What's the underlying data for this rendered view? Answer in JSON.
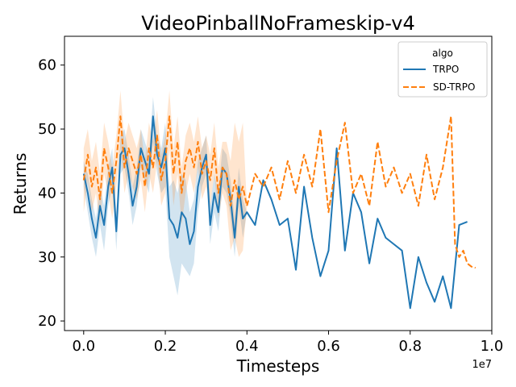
{
  "chart_data": {
    "type": "line",
    "title": "VideoPinballNoFrameskip-v4",
    "xlabel": "Timesteps",
    "ylabel": "Returns",
    "x_offset_label": "1e7",
    "xlim": [
      -0.047,
      1.0
    ],
    "ylim": [
      18.5,
      64.5
    ],
    "xticks": [
      0.0,
      0.2,
      0.4,
      0.6,
      0.8,
      1.0
    ],
    "xtick_labels": [
      "0.0",
      "0.2",
      "0.4",
      "0.6",
      "0.8",
      "1.0"
    ],
    "yticks": [
      20,
      30,
      40,
      50,
      60
    ],
    "ytick_labels": [
      "20",
      "30",
      "40",
      "50",
      "60"
    ],
    "grid": false,
    "legend": {
      "title": "algo",
      "position": "top-right"
    },
    "series": [
      {
        "name": "TRPO",
        "color": "#1f77b4",
        "dash": "solid",
        "x": [
          0.0,
          0.01,
          0.02,
          0.03,
          0.04,
          0.05,
          0.06,
          0.07,
          0.08,
          0.09,
          0.1,
          0.11,
          0.12,
          0.13,
          0.14,
          0.15,
          0.16,
          0.17,
          0.18,
          0.19,
          0.2,
          0.21,
          0.22,
          0.23,
          0.24,
          0.25,
          0.26,
          0.27,
          0.28,
          0.29,
          0.3,
          0.31,
          0.32,
          0.33,
          0.34,
          0.35,
          0.36,
          0.37,
          0.38,
          0.39,
          0.4,
          0.42,
          0.44,
          0.46,
          0.48,
          0.5,
          0.52,
          0.54,
          0.56,
          0.58,
          0.6,
          0.62,
          0.64,
          0.66,
          0.68,
          0.7,
          0.72,
          0.74,
          0.76,
          0.78,
          0.8,
          0.82,
          0.84,
          0.86,
          0.88,
          0.9,
          0.92,
          0.94
        ],
        "y": [
          43,
          40,
          36,
          33,
          38,
          35,
          41,
          44,
          34,
          46,
          47,
          43,
          38,
          41,
          47,
          45,
          43,
          52,
          46,
          44,
          47,
          36,
          35,
          33,
          37,
          36,
          32,
          34,
          41,
          44,
          46,
          35,
          40,
          37,
          44,
          43,
          39,
          33,
          41,
          36,
          37,
          35,
          42,
          39,
          35,
          36,
          28,
          41,
          33,
          27,
          31,
          47,
          31,
          40,
          37,
          29,
          36,
          33,
          32,
          31,
          22,
          30,
          26,
          23,
          27,
          22,
          35,
          35.5
        ],
        "band_lower": [
          41,
          37,
          33,
          30,
          35,
          31,
          38,
          41,
          31,
          43,
          44,
          40,
          35,
          38,
          44,
          42,
          40,
          48,
          43,
          40,
          41,
          30,
          27,
          24,
          29,
          28,
          27,
          29,
          37,
          41,
          43,
          32,
          37,
          34,
          41,
          40,
          36,
          30,
          38,
          33,
          37,
          35,
          42,
          39,
          35,
          36,
          28,
          41,
          33,
          27,
          31,
          47,
          31,
          40,
          37,
          29,
          36,
          33,
          32,
          31,
          22,
          30,
          26,
          23,
          27,
          22,
          35,
          35.5
        ],
        "band_upper": [
          45,
          43,
          39,
          36,
          41,
          38,
          44,
          47,
          37,
          49,
          50,
          46,
          41,
          44,
          50,
          48,
          46,
          55,
          49,
          47,
          51,
          41,
          42,
          40,
          43,
          42,
          37,
          39,
          45,
          47,
          49,
          38,
          43,
          40,
          47,
          46,
          42,
          36,
          44,
          39,
          37,
          35,
          42,
          39,
          35,
          36,
          28,
          41,
          33,
          27,
          31,
          47,
          31,
          40,
          37,
          29,
          36,
          33,
          32,
          31,
          22,
          30,
          26,
          23,
          27,
          22,
          35,
          35.5
        ]
      },
      {
        "name": "SD-TRPO",
        "color": "#ff7f0e",
        "dash": "dashed",
        "x": [
          0.0,
          0.01,
          0.02,
          0.03,
          0.04,
          0.05,
          0.06,
          0.07,
          0.08,
          0.09,
          0.1,
          0.11,
          0.12,
          0.13,
          0.14,
          0.15,
          0.16,
          0.17,
          0.18,
          0.19,
          0.2,
          0.21,
          0.22,
          0.23,
          0.24,
          0.25,
          0.26,
          0.27,
          0.28,
          0.29,
          0.3,
          0.31,
          0.32,
          0.33,
          0.34,
          0.35,
          0.36,
          0.37,
          0.38,
          0.39,
          0.4,
          0.42,
          0.44,
          0.46,
          0.48,
          0.5,
          0.52,
          0.54,
          0.56,
          0.58,
          0.6,
          0.62,
          0.64,
          0.66,
          0.68,
          0.7,
          0.72,
          0.74,
          0.76,
          0.78,
          0.8,
          0.82,
          0.84,
          0.86,
          0.88,
          0.9,
          0.91,
          0.92,
          0.93,
          0.94,
          0.95,
          0.96
        ],
        "y": [
          42,
          46,
          41,
          44,
          39,
          47,
          44,
          40,
          45,
          52,
          44,
          47,
          45,
          43,
          46,
          41,
          47,
          44,
          49,
          42,
          45,
          52,
          43,
          48,
          40,
          45,
          47,
          44,
          48,
          43,
          45,
          42,
          47,
          40,
          44,
          43,
          38,
          42,
          39,
          41,
          38,
          43,
          41,
          44,
          39,
          45,
          40,
          46,
          41,
          50,
          37,
          45,
          51,
          40,
          43,
          38,
          48,
          41,
          44,
          40,
          43,
          38,
          46,
          39,
          44,
          52,
          32,
          30,
          31,
          29,
          28.5,
          28.3
        ],
        "band_lower": [
          37,
          42,
          37,
          40,
          35,
          43,
          40,
          36,
          41,
          47,
          40,
          43,
          41,
          39,
          42,
          37,
          43,
          40,
          45,
          38,
          40,
          47,
          38,
          43,
          35,
          40,
          43,
          40,
          44,
          39,
          41,
          38,
          43,
          36,
          40,
          38,
          31,
          33,
          30,
          31,
          38,
          43,
          41,
          44,
          39,
          45,
          40,
          46,
          41,
          50,
          37,
          45,
          51,
          40,
          43,
          38,
          48,
          41,
          44,
          40,
          43,
          38,
          46,
          39,
          44,
          52,
          32,
          30,
          31,
          29,
          28.5,
          28.3
        ],
        "band_upper": [
          47,
          50,
          45,
          48,
          43,
          51,
          48,
          44,
          49,
          56,
          48,
          51,
          49,
          47,
          50,
          45,
          51,
          48,
          53,
          46,
          49,
          56,
          47,
          52,
          44,
          49,
          51,
          48,
          52,
          47,
          49,
          46,
          51,
          44,
          48,
          48,
          45,
          51,
          48,
          51,
          38,
          43,
          41,
          44,
          39,
          45,
          40,
          46,
          41,
          50,
          37,
          45,
          51,
          40,
          43,
          38,
          48,
          41,
          44,
          40,
          43,
          38,
          46,
          39,
          44,
          52,
          32,
          30,
          31,
          29,
          28.5,
          28.3
        ]
      }
    ]
  }
}
